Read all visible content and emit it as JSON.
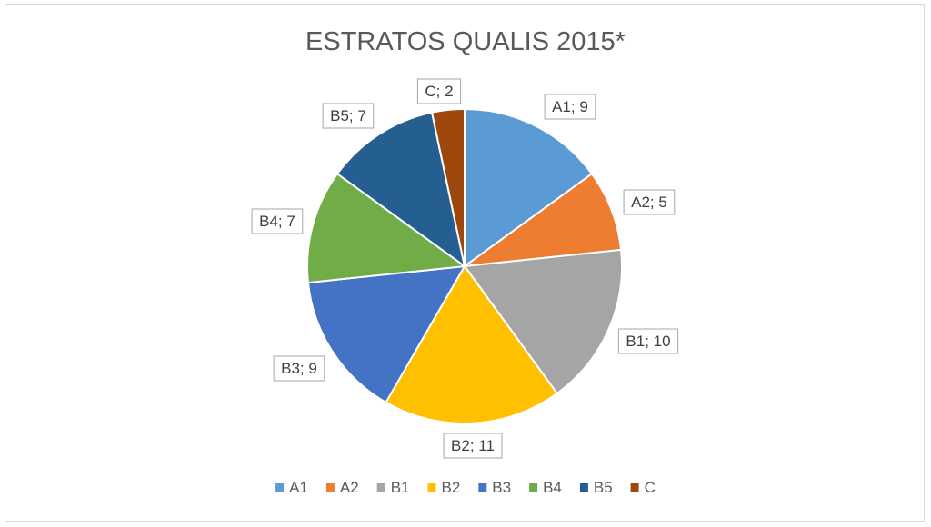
{
  "chart_data": {
    "type": "pie",
    "title": "ESTRATOS QUALIS 2015*",
    "categories": [
      "A1",
      "A2",
      "B1",
      "B2",
      "B3",
      "B4",
      "B5",
      "C"
    ],
    "values": [
      9,
      5,
      10,
      11,
      9,
      7,
      7,
      2
    ],
    "data_labels": [
      "A1; 9",
      "A2; 5",
      "B1; 10",
      "B2; 11",
      "B3; 9",
      "B4; 7",
      "B5; 7",
      "C; 2"
    ],
    "colors": [
      "#5b9bd5",
      "#ed7d31",
      "#a5a5a5",
      "#ffc000",
      "#4472c4",
      "#70ad47",
      "#255e91",
      "#9e480e"
    ],
    "legend_position": "bottom",
    "start": "12 o'clock, clockwise"
  }
}
